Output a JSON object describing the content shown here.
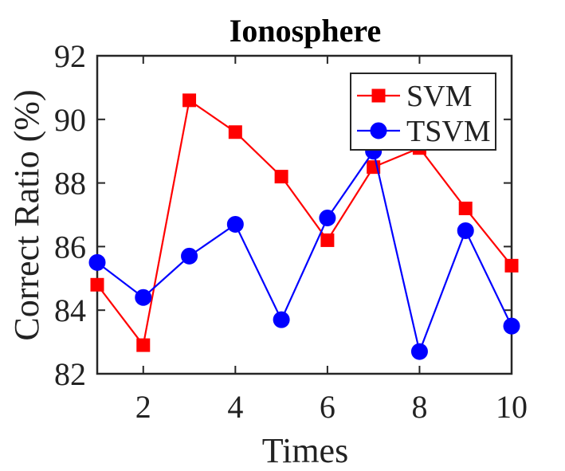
{
  "chart_data": {
    "type": "line",
    "title": "Ionosphere",
    "xlabel": "Times",
    "ylabel": "Correct Ratio (%)",
    "x": [
      1,
      2,
      3,
      4,
      5,
      6,
      7,
      8,
      9,
      10
    ],
    "xlim": [
      1,
      10
    ],
    "ylim": [
      82,
      92
    ],
    "xticks": [
      2,
      4,
      6,
      8,
      10
    ],
    "yticks": [
      82,
      84,
      86,
      88,
      90,
      92
    ],
    "grid": false,
    "legend_position": "top-right",
    "series": [
      {
        "name": "SVM",
        "color": "#ff0000",
        "marker": "square",
        "values": [
          84.8,
          82.9,
          90.6,
          89.6,
          88.2,
          86.2,
          88.5,
          89.1,
          87.2,
          85.4
        ]
      },
      {
        "name": "TSVM",
        "color": "#0000ff",
        "marker": "circle",
        "values": [
          85.5,
          84.4,
          85.7,
          86.7,
          83.7,
          86.9,
          89.0,
          82.7,
          86.5,
          83.5
        ]
      }
    ]
  }
}
